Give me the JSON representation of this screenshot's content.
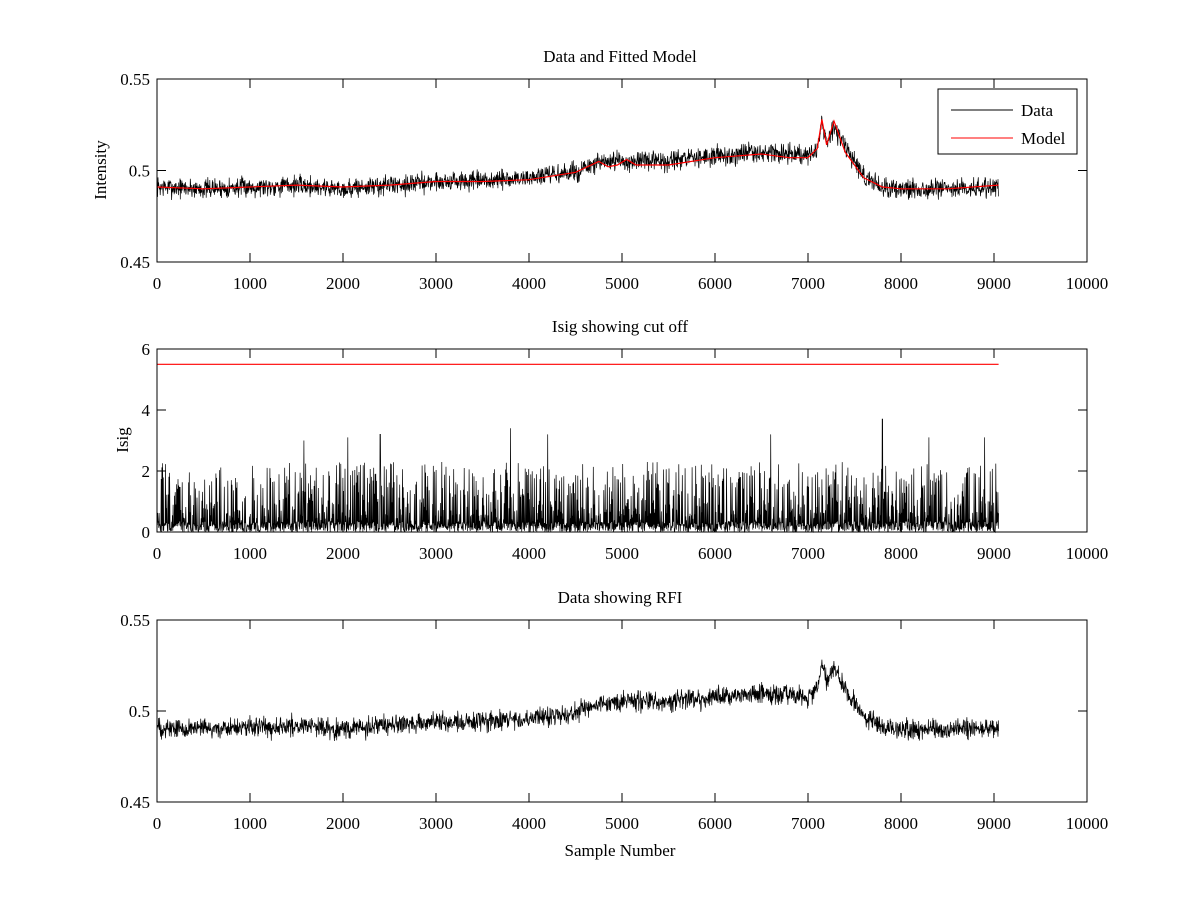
{
  "figure": {
    "background": "#ffffff"
  },
  "chart_data": [
    {
      "type": "line",
      "title": "Data and Fitted Model",
      "xlabel": "",
      "ylabel": "Intensity",
      "xlim": [
        0,
        10000
      ],
      "ylim": [
        0.45,
        0.55
      ],
      "xticks": [
        0,
        1000,
        2000,
        3000,
        4000,
        5000,
        6000,
        7000,
        8000,
        9000,
        10000
      ],
      "yticks": [
        0.45,
        0.5,
        0.55
      ],
      "grid": false,
      "legend_position": "top-right",
      "legend": [
        {
          "label": "Data",
          "color": "#000000"
        },
        {
          "label": "Model",
          "color": "#ff0000"
        }
      ],
      "series": [
        {
          "name": "Data",
          "color": "#000000",
          "kind": "noisy-trace",
          "noise_amplitude": 0.008,
          "x": [
            0,
            500,
            1000,
            1500,
            2000,
            2500,
            3000,
            3500,
            4000,
            4500,
            4750,
            5000,
            5500,
            6000,
            6500,
            7000,
            7100,
            7150,
            7200,
            7280,
            7400,
            7600,
            7800,
            8000,
            8500,
            9050
          ],
          "y": [
            0.491,
            0.49,
            0.491,
            0.492,
            0.49,
            0.492,
            0.494,
            0.494,
            0.496,
            0.499,
            0.504,
            0.505,
            0.505,
            0.508,
            0.51,
            0.508,
            0.512,
            0.526,
            0.515,
            0.524,
            0.512,
            0.497,
            0.491,
            0.49,
            0.49,
            0.491
          ]
        },
        {
          "name": "Model",
          "color": "#ff0000",
          "kind": "line",
          "x": [
            0,
            500,
            1000,
            1500,
            2000,
            2500,
            3000,
            3500,
            4000,
            4500,
            4750,
            4850,
            4950,
            5050,
            5150,
            5500,
            6000,
            6500,
            6800,
            7000,
            7100,
            7150,
            7200,
            7280,
            7400,
            7600,
            7800,
            8000,
            8500,
            9050
          ],
          "y": [
            0.491,
            0.49,
            0.491,
            0.492,
            0.491,
            0.492,
            0.494,
            0.494,
            0.495,
            0.499,
            0.505,
            0.502,
            0.503,
            0.506,
            0.503,
            0.503,
            0.507,
            0.509,
            0.507,
            0.507,
            0.512,
            0.528,
            0.514,
            0.527,
            0.51,
            0.496,
            0.491,
            0.49,
            0.49,
            0.492
          ]
        }
      ]
    },
    {
      "type": "line",
      "title": "Isig showing cut off",
      "xlabel": "",
      "ylabel": "Isig",
      "xlim": [
        0,
        10000
      ],
      "ylim": [
        0,
        6
      ],
      "xticks": [
        0,
        1000,
        2000,
        3000,
        4000,
        5000,
        6000,
        7000,
        8000,
        9000,
        10000
      ],
      "yticks": [
        0,
        2,
        4,
        6
      ],
      "grid": false,
      "series": [
        {
          "name": "Isig",
          "color": "#000000",
          "kind": "spiky-trace",
          "x_range": [
            0,
            9050
          ],
          "peaks": [
            {
              "x": 1580,
              "y": 3.0
            },
            {
              "x": 2050,
              "y": 3.1
            },
            {
              "x": 2400,
              "y": 3.2
            },
            {
              "x": 3800,
              "y": 3.4
            },
            {
              "x": 4200,
              "y": 3.2
            },
            {
              "x": 6600,
              "y": 3.2
            },
            {
              "x": 7800,
              "y": 3.7
            },
            {
              "x": 8300,
              "y": 3.1
            },
            {
              "x": 8900,
              "y": 3.1
            }
          ]
        },
        {
          "name": "cut off",
          "color": "#ff0000",
          "kind": "line",
          "x": [
            0,
            9050
          ],
          "y": [
            5.5,
            5.5
          ]
        }
      ]
    },
    {
      "type": "line",
      "title": "Data showing RFI",
      "xlabel": "Sample Number",
      "ylabel": "",
      "xlim": [
        0,
        10000
      ],
      "ylim": [
        0.45,
        0.55
      ],
      "xticks": [
        0,
        1000,
        2000,
        3000,
        4000,
        5000,
        6000,
        7000,
        8000,
        9000,
        10000
      ],
      "yticks": [
        0.45,
        0.5,
        0.55
      ],
      "grid": false,
      "series": [
        {
          "name": "Data",
          "color": "#000000",
          "kind": "noisy-trace",
          "noise_amplitude": 0.008,
          "x": [
            0,
            500,
            1000,
            1500,
            2000,
            2500,
            3000,
            3500,
            4000,
            4500,
            4750,
            5000,
            5500,
            6000,
            6500,
            7000,
            7100,
            7150,
            7200,
            7280,
            7400,
            7600,
            7800,
            8000,
            8500,
            9050
          ],
          "y": [
            0.491,
            0.49,
            0.491,
            0.492,
            0.49,
            0.492,
            0.494,
            0.494,
            0.496,
            0.499,
            0.504,
            0.505,
            0.505,
            0.508,
            0.51,
            0.508,
            0.512,
            0.526,
            0.515,
            0.524,
            0.512,
            0.497,
            0.491,
            0.49,
            0.49,
            0.491
          ]
        }
      ]
    }
  ]
}
